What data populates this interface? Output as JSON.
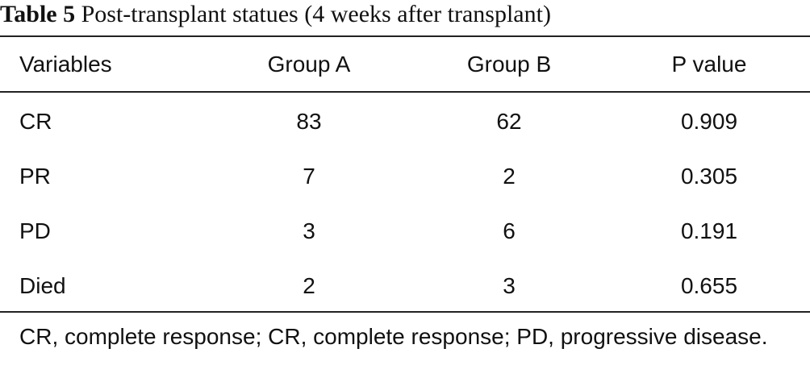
{
  "caption": {
    "label": "Table 5",
    "text": "Post-transplant statues (4 weeks after transplant)"
  },
  "table": {
    "headers": [
      "Variables",
      "Group A",
      "Group B",
      "P value"
    ],
    "rows": [
      [
        "CR",
        "83",
        "62",
        "0.909"
      ],
      [
        "PR",
        "7",
        "2",
        "0.305"
      ],
      [
        "PD",
        "3",
        "6",
        "0.191"
      ],
      [
        "Died",
        "2",
        "3",
        "0.655"
      ]
    ]
  },
  "footnote": "CR, complete response; CR, complete response; PD, progressive disease."
}
